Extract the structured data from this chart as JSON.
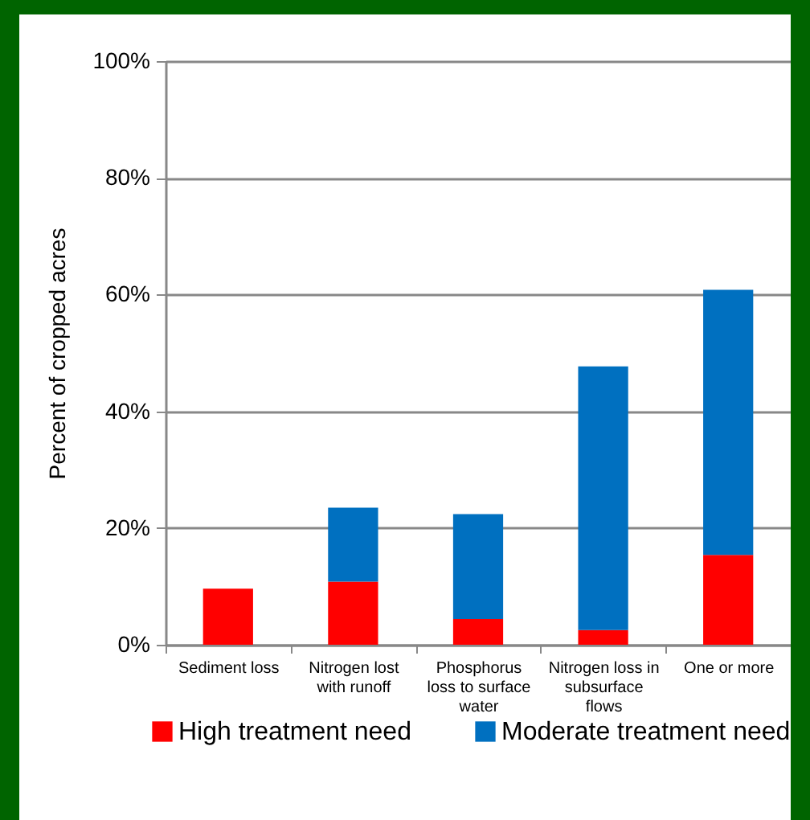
{
  "chart_data": {
    "type": "bar",
    "stacked": true,
    "ylabel": "Percent of cropped acres",
    "categories": [
      "Sediment loss",
      "Nitrogen lost with runoff",
      "Phosphorus loss to surface water",
      "Nitrogen loss in subsurface flows",
      "One or more"
    ],
    "series": [
      {
        "name": "High treatment need",
        "color": "#ff0000",
        "values": [
          9.6,
          10.8,
          4.4,
          2.5,
          15.4
        ]
      },
      {
        "name": "Moderate treatment need",
        "color": "#0070c0",
        "values": [
          null,
          12.7,
          18.0,
          45.2,
          45.4
        ]
      }
    ],
    "ylim": [
      0,
      100
    ],
    "yticks": [
      {
        "value": 0,
        "label": "0%"
      },
      {
        "value": 20,
        "label": "20%"
      },
      {
        "value": 40,
        "label": "40%"
      },
      {
        "value": 60,
        "label": "60%"
      },
      {
        "value": 80,
        "label": "80%"
      },
      {
        "value": 100,
        "label": "100%"
      }
    ],
    "grid": "y",
    "legend": "bottom"
  }
}
